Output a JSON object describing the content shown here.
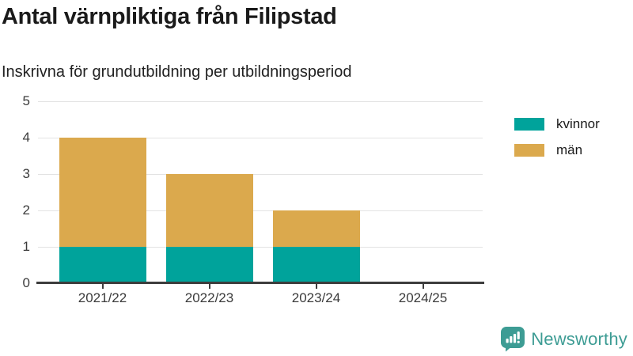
{
  "title": "Antal värnpliktiga från Filipstad",
  "subtitle": "Inskrivna för grundutbildning per utbildningsperiod",
  "colors": {
    "kvinnor": "#00a39b",
    "man": "#dba94d",
    "axis": "#3d3d3d",
    "grid": "#e3e3e3",
    "brand_teal": "#3d9c94"
  },
  "legend": {
    "items": [
      {
        "label": "kvinnor",
        "color": "#00a39b"
      },
      {
        "label": "män",
        "color": "#dba94d"
      }
    ]
  },
  "chart_data": {
    "type": "bar",
    "stacked": true,
    "title": "Antal värnpliktiga från Filipstad",
    "subtitle": "Inskrivna för grundutbildning per utbildningsperiod",
    "categories": [
      "2021/22",
      "2022/23",
      "2023/24",
      "2024/25"
    ],
    "series": [
      {
        "name": "kvinnor",
        "color": "#00a39b",
        "values": [
          1,
          1,
          1,
          0
        ]
      },
      {
        "name": "män",
        "color": "#dba94d",
        "values": [
          3,
          2,
          1,
          0
        ]
      }
    ],
    "totals": [
      4,
      3,
      2,
      0
    ],
    "xlabel": "",
    "ylabel": "",
    "ylim": [
      0,
      5
    ],
    "yticks": [
      0,
      1,
      2,
      3,
      4,
      5
    ],
    "grid": true,
    "legend_position": "right"
  },
  "branding": {
    "logo_text": "Newsworthy"
  }
}
